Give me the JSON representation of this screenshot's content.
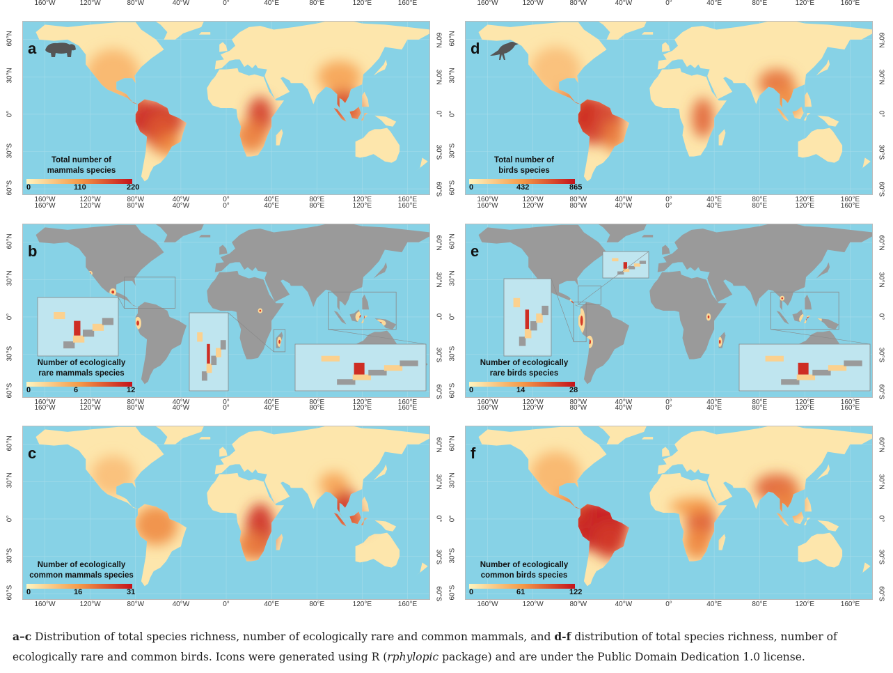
{
  "axes": {
    "lon_ticks": [
      "160°W",
      "120°W",
      "80°W",
      "40°W",
      "0°",
      "40°E",
      "80°E",
      "120°E",
      "160°E"
    ],
    "lat_ticks": [
      "60°N",
      "30°N",
      "0°",
      "30°S",
      "60°S"
    ]
  },
  "colors": {
    "ocean": "#87d2e6",
    "no_data_land": "#9a9a9a",
    "scale_low": "#fff5bf",
    "scale_mid": "#f59a48",
    "scale_high": "#c4121a",
    "icon": "#555555"
  },
  "panels": [
    {
      "letter": "a",
      "title_line1": "Total number of",
      "title_line2": "mammals species",
      "min": "0",
      "mid": "110",
      "max": "220",
      "icon": "bear-icon"
    },
    {
      "letter": "d",
      "title_line1": "Total number of",
      "title_line2": "birds species",
      "min": "0",
      "mid": "432",
      "max": "865",
      "icon": "bird-icon"
    },
    {
      "letter": "b",
      "title_line1": "Number of ecologically",
      "title_line2": "rare mammals species",
      "min": "0",
      "mid": "6",
      "max": "12"
    },
    {
      "letter": "e",
      "title_line1": "Number of ecologically",
      "title_line2": "rare birds species",
      "min": "0",
      "mid": "14",
      "max": "28"
    },
    {
      "letter": "c",
      "title_line1": "Number of ecologically",
      "title_line2": "common mammals species",
      "min": "0",
      "mid": "16",
      "max": "31"
    },
    {
      "letter": "f",
      "title_line1": "Number of ecologically",
      "title_line2": "common birds species",
      "min": "0",
      "mid": "61",
      "max": "122"
    }
  ],
  "caption": {
    "b1": "a",
    "dash": "–",
    "b2": "c",
    "t1": " Distribution of total species richness, number of ecologically rare and common mammals, and ",
    "b3": "d-f",
    "t2": " distribution of total species richness, number of ecologically rare and common birds. Icons were generated using R (",
    "i1": "rphylopic",
    "t3": " package) and are under the Public Domain Dedication 1.0 license."
  }
}
